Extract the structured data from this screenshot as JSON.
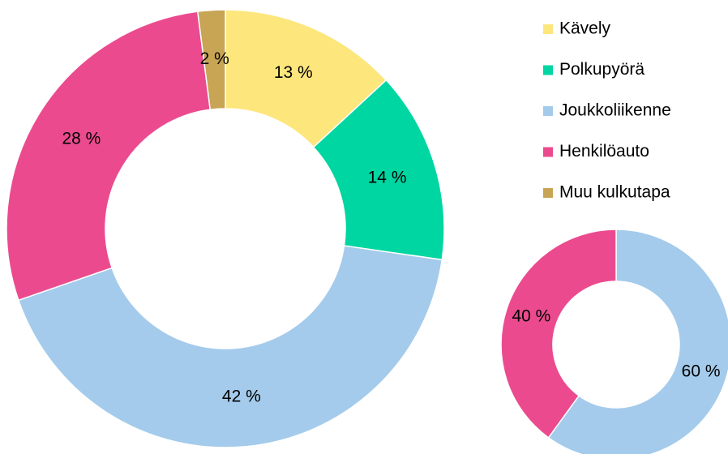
{
  "chart_data": [
    {
      "type": "donut",
      "categories": [
        "Kävely",
        "Polkupyörä",
        "Joukkoliikenne",
        "Henkilöauto",
        "Muu kulkutapa"
      ],
      "values": [
        13,
        14,
        42,
        28,
        2
      ],
      "value_labels": [
        "13 %",
        "14 %",
        "42 %",
        "28 %",
        "2 %"
      ],
      "colors": [
        "#fde67c",
        "#00d6a1",
        "#a4cbeb",
        "#eb4b8e",
        "#c8a455"
      ],
      "legend": "top-right"
    },
    {
      "type": "donut",
      "values": [
        60,
        40
      ],
      "value_labels": [
        "60 %",
        "40 %"
      ],
      "colors": [
        "#a4cbeb",
        "#eb4b8e"
      ]
    }
  ]
}
